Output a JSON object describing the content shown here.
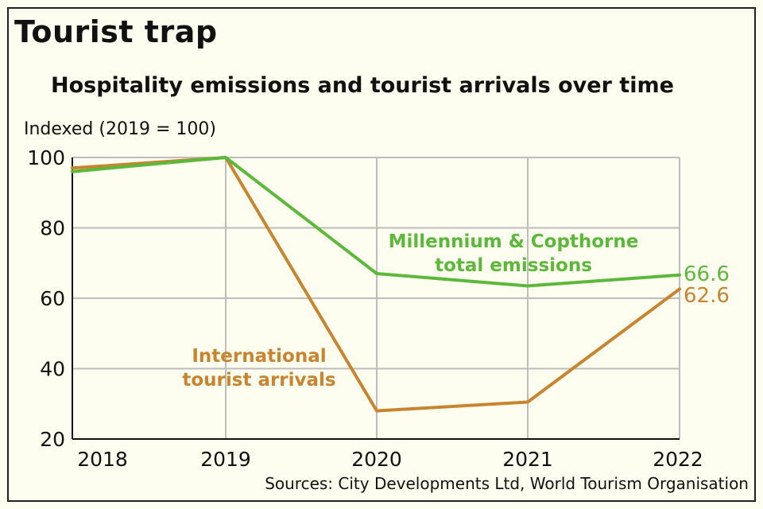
{
  "header": {
    "title": "Tourist trap",
    "subtitle": "Hospitality emissions and tourist arrivals over time",
    "y_unit": "Indexed (2019 = 100)"
  },
  "footer": {
    "source": "Sources: City Developments Ltd, World Tourism Organisation"
  },
  "colors": {
    "emissions": "#5cb83a",
    "arrivals": "#c8842f",
    "grid": "#bdbdbd",
    "background": "#fdfdf0"
  },
  "annotations": {
    "emissions_line1": "Millennium & Copthorne",
    "emissions_line2": "total emissions",
    "arrivals_line1": "International",
    "arrivals_line2": "tourist arrivals",
    "emissions_end": "66.6",
    "arrivals_end": "62.6"
  },
  "axes": {
    "y_ticks": [
      "100",
      "80",
      "60",
      "40",
      "20"
    ],
    "x_ticks": [
      "2018",
      "2019",
      "2020",
      "2021",
      "2022"
    ]
  },
  "chart_data": {
    "type": "line",
    "title": "Hospitality emissions and tourist arrivals over time",
    "suptitle": "Tourist trap",
    "xlabel": "",
    "ylabel": "Indexed (2019 = 100)",
    "categories": [
      "2018",
      "2019",
      "2020",
      "2021",
      "2022"
    ],
    "series": [
      {
        "name": "Millennium & Copthorne total emissions",
        "color": "#5cb83a",
        "values": [
          96,
          100,
          67,
          63.5,
          66.6
        ]
      },
      {
        "name": "International tourist arrivals",
        "color": "#c8842f",
        "values": [
          97,
          100,
          28,
          30.5,
          62.6
        ]
      }
    ],
    "ylim": [
      20,
      100
    ],
    "yticks": [
      20,
      40,
      60,
      80,
      100
    ],
    "grid": true,
    "legend": "direct labels on lines",
    "end_labels": {
      "Millennium & Copthorne total emissions": "66.6",
      "International tourist arrivals": "62.6"
    },
    "source": "Sources: City Developments Ltd, World Tourism Organisation"
  }
}
